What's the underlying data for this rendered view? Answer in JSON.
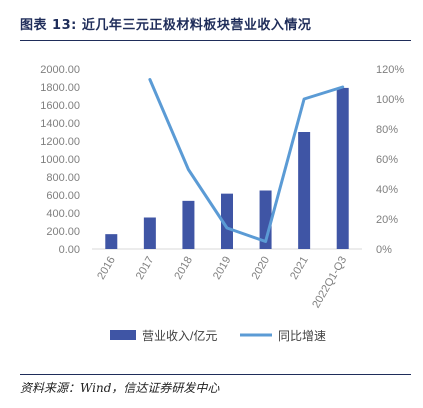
{
  "header": {
    "title": "图表 13:  近几年三元正极材料板块营业收入情况"
  },
  "footer": {
    "source": "资料来源：Wind，信达证券研发中心"
  },
  "colors": {
    "bar": "#3f55a5",
    "line": "#5b9bd5",
    "axis_text": "#7f7f7f",
    "rule": "#1f2d5a"
  },
  "chart_data": {
    "type": "bar",
    "title": "",
    "categories": [
      "2016",
      "2017",
      "2018",
      "2019",
      "2020",
      "2021",
      "2022Q1-Q3"
    ],
    "series": [
      {
        "name": "营业收入/亿元",
        "type": "bar",
        "axis": "left",
        "values": [
          165,
          350,
          535,
          615,
          650,
          1300,
          1790
        ]
      },
      {
        "name": "同比增速",
        "type": "line",
        "axis": "right",
        "values": [
          null,
          1.13,
          0.53,
          0.14,
          0.05,
          1.0,
          1.08
        ]
      }
    ],
    "y_left": {
      "ylim": [
        0,
        2000
      ],
      "ticks": [
        "0.00",
        "200.00",
        "400.00",
        "600.00",
        "800.00",
        "1000.00",
        "1200.00",
        "1400.00",
        "1600.00",
        "1800.00",
        "2000.00"
      ]
    },
    "y_right": {
      "ylim": [
        0,
        1.2
      ],
      "ticks": [
        "0%",
        "20%",
        "40%",
        "60%",
        "80%",
        "100%",
        "120%"
      ]
    },
    "grid": false,
    "legend_position": "bottom"
  }
}
